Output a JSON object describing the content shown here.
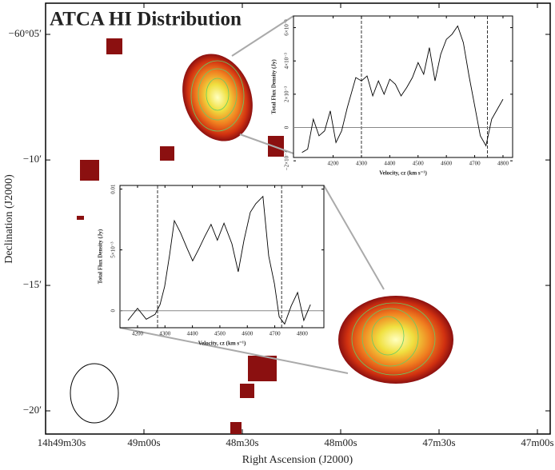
{
  "chart_data": [
    {
      "type": "image",
      "title": "ATCA HI Distribution",
      "xlabel": "Right Ascension (J2000)",
      "ylabel": "Declination (J2000)",
      "xlim": [
        53370,
        53216.1
      ],
      "xticks": [
        {
          "value": 53370,
          "label": "14h49m30s"
        },
        {
          "value": 53340,
          "label": "49m00s"
        },
        {
          "value": 53310,
          "label": "48m30s"
        },
        {
          "value": 53280,
          "label": "48m00s"
        },
        {
          "value": 53250,
          "label": "47m30s"
        },
        {
          "value": 53220,
          "label": "47m00s"
        }
      ],
      "ylim": [
        -60.3487,
        -60.0626
      ],
      "yticks": [
        {
          "value": -60.0833,
          "label": "−60°05′"
        },
        {
          "value": -60.1667,
          "label": "−10′"
        },
        {
          "value": -60.25,
          "label": "−15′"
        },
        {
          "value": -60.3333,
          "label": "−20′"
        }
      ]
    },
    {
      "type": "line",
      "xlabel": "Velocity, cz (km s⁻¹)",
      "ylabel": "Total Flux Density (Jy)",
      "x": [
        4090,
        4110,
        4130,
        4150,
        4170,
        4190,
        4210,
        4230,
        4250,
        4280,
        4300,
        4320,
        4340,
        4360,
        4380,
        4400,
        4420,
        4440,
        4460,
        4480,
        4500,
        4520,
        4540,
        4560,
        4580,
        4600,
        4620,
        4640,
        4660,
        4680,
        4700,
        4720,
        4740,
        4760,
        4780,
        4800
      ],
      "values": [
        -0.0015,
        -0.0013,
        0.0005,
        -0.0005,
        -0.0002,
        0.001,
        -0.0009,
        -0.0002,
        0.0012,
        0.003,
        0.0028,
        0.0031,
        0.0019,
        0.0028,
        0.002,
        0.0029,
        0.0026,
        0.0019,
        0.0024,
        0.003,
        0.0039,
        0.0032,
        0.0048,
        0.0028,
        0.0044,
        0.0053,
        0.0056,
        0.0061,
        0.0051,
        0.0031,
        0.0013,
        -0.0005,
        -0.0011,
        0.0005,
        0.0011,
        0.0017
      ],
      "vlines": [
        4300,
        4745
      ],
      "xlim": [
        4060,
        4834
      ],
      "xticks": [
        4200,
        4300,
        4400,
        4500,
        4600,
        4700,
        4800
      ],
      "ylim": [
        -0.0018,
        0.0067
      ],
      "yticks": [
        {
          "value": -0.002,
          "label": "−2×10⁻³"
        },
        {
          "value": 0,
          "label": "0"
        },
        {
          "value": 0.002,
          "label": "2×10⁻³"
        },
        {
          "value": 0.004,
          "label": "4×10⁻³"
        },
        {
          "value": 0.006,
          "label": "6×10⁻³"
        }
      ]
    },
    {
      "type": "line",
      "xlabel": "Velocity, cz (km s⁻¹)",
      "ylabel": "Total Flux Density (Jy)",
      "x": [
        4165,
        4200,
        4232,
        4264,
        4282,
        4299,
        4317,
        4334,
        4357,
        4381,
        4401,
        4424,
        4445,
        4468,
        4491,
        4515,
        4544,
        4567,
        4588,
        4611,
        4631,
        4657,
        4678,
        4699,
        4716,
        4736,
        4760,
        4783,
        4806,
        4830
      ],
      "values": [
        -0.0008,
        0.0002,
        -0.0007,
        -0.0003,
        0.0005,
        0.002,
        0.0046,
        0.0074,
        0.0064,
        0.0051,
        0.0041,
        0.0051,
        0.0061,
        0.0071,
        0.0058,
        0.0072,
        0.0055,
        0.0032,
        0.0058,
        0.0081,
        0.0088,
        0.0094,
        0.0045,
        0.0022,
        -0.0005,
        -0.0011,
        0.0004,
        0.0015,
        -0.0008,
        0.0005
      ],
      "vlines": [
        4273,
        4725
      ],
      "xlim": [
        4136,
        4879
      ],
      "xticks": [
        4200,
        4300,
        4400,
        4500,
        4600,
        4700,
        4800
      ],
      "ylim": [
        -0.0014,
        0.0103
      ],
      "yticks": [
        0,
        {
          "value": 0.005,
          "label": "5×10⁻³"
        },
        0.01
      ]
    }
  ]
}
